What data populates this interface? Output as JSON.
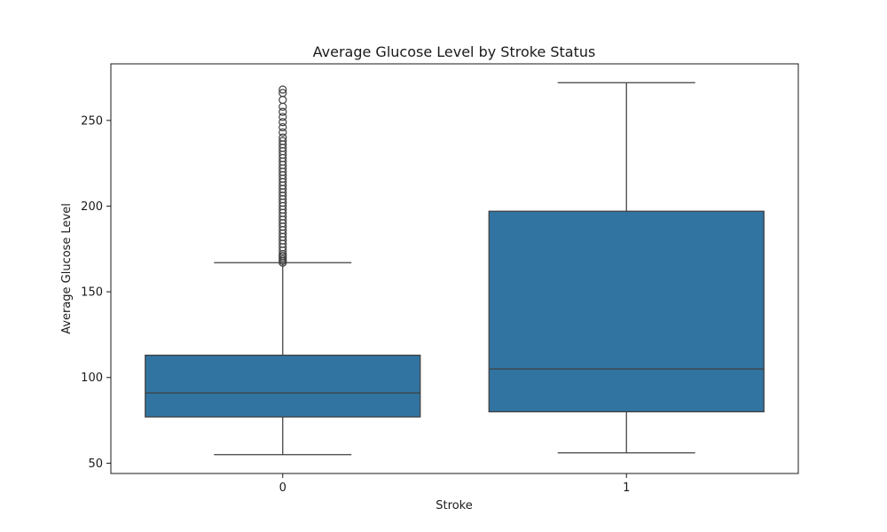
{
  "chart_data": {
    "type": "box",
    "title": "Average Glucose Level by Stroke Status",
    "xlabel": "Stroke",
    "ylabel": "Average Glucose Level",
    "categories": [
      "0",
      "1"
    ],
    "ylim": [
      44,
      283
    ],
    "yticks": [
      50,
      100,
      150,
      200,
      250
    ],
    "box_color": "#3274a1",
    "line_color": "#3f3f3f",
    "grid": false,
    "boxes": [
      {
        "category": "0",
        "whisker_low": 55,
        "q1": 77,
        "median": 91,
        "q3": 113,
        "whisker_high": 167,
        "outliers": [
          167,
          168,
          169,
          170,
          171,
          172,
          174,
          176,
          178,
          180,
          182,
          184,
          186,
          188,
          190,
          192,
          194,
          196,
          198,
          200,
          202,
          204,
          206,
          208,
          210,
          212,
          214,
          216,
          218,
          220,
          222,
          224,
          226,
          228,
          230,
          232,
          234,
          236,
          238,
          240,
          243,
          246,
          249,
          252,
          255,
          258,
          262,
          266,
          268
        ]
      },
      {
        "category": "1",
        "whisker_low": 56,
        "q1": 80,
        "median": 105,
        "q3": 197,
        "whisker_high": 272,
        "outliers": []
      }
    ]
  }
}
